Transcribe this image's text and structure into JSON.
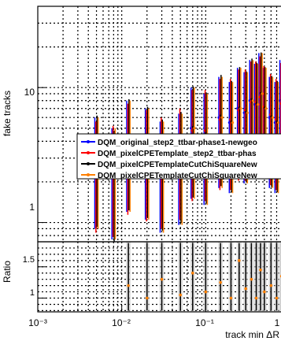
{
  "chart_data": [
    {
      "type": "scatter",
      "panel": "main",
      "ylabel": "fake tracks",
      "xlabel": "",
      "xscale": "log",
      "yscale": "log",
      "xlim": [
        0.001,
        1.0
      ],
      "ylim": [
        0.72,
        40
      ],
      "grid": true,
      "legend_position": "middle-right",
      "ytick_labels": [
        "1",
        "10"
      ],
      "series": [
        {
          "name": "DQM_original_step2_ttbar-phase1-newgeo",
          "color": "#0000ff",
          "x": [
            0.005,
            0.008,
            0.012,
            0.02,
            0.03,
            0.05,
            0.07,
            0.1,
            0.15,
            0.2,
            0.25,
            0.3,
            0.35,
            0.4,
            0.45,
            0.5,
            0.6,
            0.7,
            0.8,
            0.9
          ],
          "y": [
            3.0,
            2.5,
            4.0,
            3.5,
            2.8,
            3.2,
            5.0,
            4.5,
            6.0,
            5.5,
            7.0,
            6.5,
            8.0,
            7.5,
            9.0,
            7.0,
            6.0,
            5.5,
            8.0,
            6.0
          ]
        },
        {
          "name": "DQM_pixelCPETemplate_step2_ttbar-phas",
          "color": "#ff0000",
          "x": [
            0.005,
            0.008,
            0.012,
            0.02,
            0.03,
            0.05,
            0.07,
            0.1,
            0.15,
            0.2,
            0.25,
            0.3,
            0.35,
            0.4,
            0.45,
            0.5,
            0.6,
            0.7,
            0.8,
            0.9
          ],
          "y": [
            2.8,
            2.6,
            3.8,
            3.4,
            3.0,
            3.5,
            4.8,
            4.8,
            5.8,
            5.8,
            6.8,
            6.8,
            7.8,
            7.8,
            8.5,
            7.2,
            6.3,
            5.8,
            7.6,
            6.3
          ]
        },
        {
          "name": "DQM_pixelCPETemplateCutChiSquareNew",
          "color": "#000000",
          "x": [
            0.005,
            0.008,
            0.012,
            0.02,
            0.03,
            0.05,
            0.07,
            0.1,
            0.15,
            0.2,
            0.25,
            0.3,
            0.35,
            0.4,
            0.45,
            0.5,
            0.6,
            0.7,
            0.8,
            0.9
          ],
          "y": [
            3.1,
            2.4,
            4.1,
            3.6,
            2.9,
            3.3,
            5.1,
            4.6,
            6.2,
            5.6,
            7.1,
            6.6,
            8.2,
            7.6,
            9.1,
            7.1,
            6.1,
            5.6,
            8.1,
            6.1
          ]
        },
        {
          "name": "DQM_pixelCPETemplateCutChiSquareNew",
          "color": "#ff7f00",
          "x": [
            0.005,
            0.008,
            0.012,
            0.02,
            0.03,
            0.05,
            0.07,
            0.1,
            0.15,
            0.2,
            0.25,
            0.3,
            0.35,
            0.4,
            0.45,
            0.5,
            0.6,
            0.7,
            0.8,
            0.9
          ],
          "y": [
            3.0,
            2.5,
            4.0,
            3.5,
            2.8,
            3.2,
            5.0,
            4.5,
            6.0,
            5.5,
            7.0,
            6.5,
            8.0,
            7.5,
            9.0,
            7.0,
            6.0,
            5.5,
            8.0,
            6.0
          ]
        }
      ]
    },
    {
      "type": "scatter",
      "panel": "ratio",
      "ylabel": "Ratio",
      "xlabel": "track min ΔR",
      "xscale": "log",
      "xlim": [
        0.001,
        1.0
      ],
      "ylim": [
        0.78,
        1.9
      ],
      "grid": true,
      "ytick_labels": [
        "1",
        "1.5"
      ],
      "xtick_labels": [
        "10⁻³",
        "10⁻²",
        "10⁻¹",
        "1"
      ],
      "series": [
        {
          "name": "DQM_pixelCPETemplateCutChiSquareNew",
          "color": "#ff7f00",
          "x": [
            0.012,
            0.02,
            0.03,
            0.05,
            0.07,
            0.1,
            0.15,
            0.2,
            0.25,
            0.3,
            0.35,
            0.4,
            0.45,
            0.5,
            0.6,
            0.7,
            0.8,
            0.9
          ],
          "y": [
            1.2,
            1.0,
            1.3,
            1.05,
            1.4,
            1.1,
            1.25,
            1.0,
            1.6,
            1.15,
            1.3,
            1.0,
            1.45,
            1.1,
            1.2,
            1.0,
            1.35,
            1.1
          ]
        }
      ]
    }
  ],
  "main": {
    "ylabel": "fake tracks",
    "ytick_10": "10",
    "ytick_1": "1"
  },
  "ratio": {
    "ylabel": "Ratio",
    "ytick_15": "1.5",
    "ytick_1": "1"
  },
  "xaxis": {
    "label": "track min ΔR",
    "ticks": [
      "10⁻³",
      "10⁻²",
      "10⁻¹",
      "1"
    ]
  },
  "legend": {
    "entries": [
      {
        "label": "DQM_original_step2_ttbar-phase1-newgeo",
        "color": "#0000ff"
      },
      {
        "label": "DQM_pixelCPETemplate_step2_ttbar-phas",
        "color": "#ff0000"
      },
      {
        "label": "DQM_pixelCPETemplateCutChiSquareNew",
        "color": "#000000"
      },
      {
        "label": "DQM_pixelCPETemplateCutChiSquareNew",
        "color": "#ff7f00"
      }
    ]
  }
}
